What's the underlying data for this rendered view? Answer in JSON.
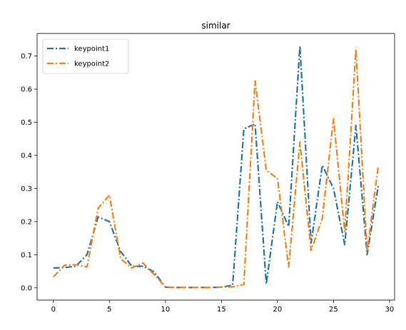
{
  "chart_data": {
    "type": "line",
    "title": "similar",
    "xlabel": "",
    "ylabel": "",
    "xlim": [
      -1.45,
      30.45
    ],
    "ylim": [
      -0.037,
      0.768
    ],
    "xticks": [
      0,
      5,
      10,
      15,
      20,
      25,
      30
    ],
    "yticks": [
      0.0,
      0.1,
      0.2,
      0.3,
      0.4,
      0.5,
      0.6,
      0.7
    ],
    "xtick_labels": [
      "0",
      "5",
      "10",
      "15",
      "20",
      "25",
      "30"
    ],
    "ytick_labels": [
      "0.0",
      "0.1",
      "0.2",
      "0.3",
      "0.4",
      "0.5",
      "0.6",
      "0.7"
    ],
    "grid": false,
    "legend_position": "top-left",
    "x": [
      0,
      1,
      2,
      3,
      4,
      5,
      6,
      7,
      8,
      9,
      10,
      11,
      12,
      13,
      14,
      15,
      16,
      17,
      18,
      19,
      20,
      21,
      22,
      23,
      24,
      25,
      26,
      27,
      28,
      29
    ],
    "series": [
      {
        "name": "keypoint1",
        "color": "#1f77b4",
        "linestyle": "dashdot",
        "values": [
          0.06,
          0.061,
          0.065,
          0.1,
          0.214,
          0.2,
          0.11,
          0.065,
          0.065,
          0.048,
          0.002,
          0.001,
          0.001,
          0.001,
          0.001,
          0.002,
          0.008,
          0.48,
          0.495,
          0.012,
          0.26,
          0.185,
          0.73,
          0.135,
          0.37,
          0.3,
          0.13,
          0.49,
          0.1,
          0.31
        ]
      },
      {
        "name": "keypoint2",
        "color": "#ff7f0e",
        "linestyle": "dashdot",
        "values": [
          0.033,
          0.068,
          0.07,
          0.063,
          0.24,
          0.28,
          0.088,
          0.06,
          0.075,
          0.04,
          0.002,
          0.001,
          0.001,
          0.001,
          0.001,
          0.002,
          0.003,
          0.01,
          0.625,
          0.355,
          0.33,
          0.063,
          0.44,
          0.113,
          0.21,
          0.51,
          0.17,
          0.72,
          0.11,
          0.37
        ]
      }
    ]
  }
}
